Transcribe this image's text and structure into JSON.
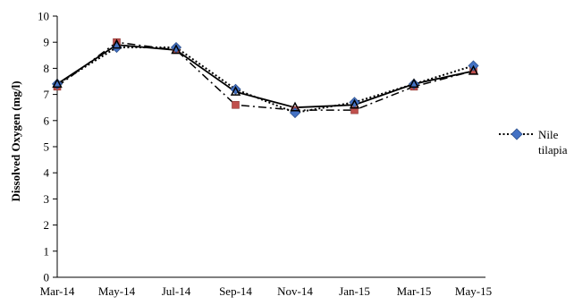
{
  "chart_data": {
    "type": "line",
    "title": "",
    "xlabel": "",
    "ylabel": "Dissolved Oxygen (mg/l)",
    "categories": [
      "Mar-14",
      "May-14",
      "Jul-14",
      "Sep-14",
      "Nov-14",
      "Jan-15",
      "Mar-15",
      "May-15"
    ],
    "ylim": [
      0,
      10
    ],
    "yticks": [
      "0",
      "1",
      "2",
      "3",
      "4",
      "5",
      "6",
      "7",
      "8",
      "9",
      "10"
    ],
    "grid": false,
    "legend_position": "right",
    "series": [
      {
        "name": "Nile tilapia",
        "values": [
          7.4,
          8.8,
          8.8,
          7.2,
          6.3,
          6.7,
          7.4,
          8.1
        ],
        "color": "#4472c4",
        "marker": "diamond",
        "line_style": "dotted",
        "line_color": "#000000"
      },
      {
        "values": [
          7.3,
          9.0,
          8.7,
          6.6,
          6.4,
          6.4,
          7.3,
          7.9
        ],
        "color": "#c0504d",
        "marker": "square",
        "line_style": "dash-dot",
        "line_color": "#000000"
      },
      {
        "values": [
          7.4,
          8.9,
          8.7,
          7.1,
          6.5,
          6.6,
          7.4,
          7.9
        ],
        "color": "#000000",
        "marker": "triangle",
        "line_style": "solid",
        "line_color": "#000000"
      }
    ],
    "legend": {
      "label_line1": "Nile",
      "label_line2": "tilapia"
    }
  }
}
